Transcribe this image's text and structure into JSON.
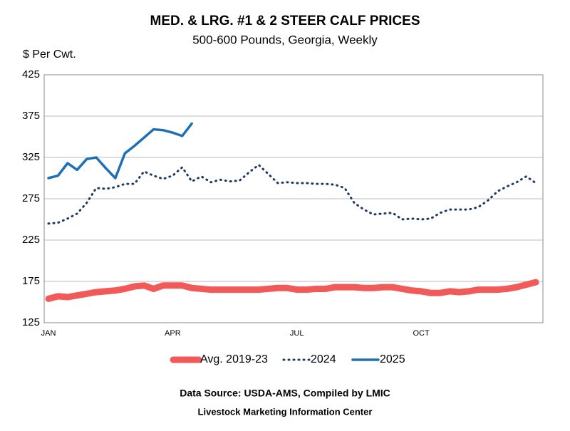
{
  "chart_data": {
    "type": "line",
    "title": "MED. & LRG. #1 & 2 STEER CALF PRICES",
    "subtitle": "500-600 Pounds, Georgia, Weekly",
    "y_label": "$ Per Cwt.",
    "source": "Data Source:  USDA-AMS, Compiled by LMIC",
    "footer": "Livestock Marketing Information Center",
    "categories": [
      "JAN",
      null,
      null,
      null,
      null,
      null,
      null,
      null,
      null,
      null,
      null,
      null,
      null,
      "APR",
      null,
      null,
      null,
      null,
      null,
      null,
      null,
      null,
      null,
      null,
      null,
      null,
      "JUL",
      null,
      null,
      null,
      null,
      null,
      null,
      null,
      null,
      null,
      null,
      null,
      null,
      "OCT",
      null,
      null,
      null,
      null,
      null,
      null,
      null,
      null,
      null,
      null,
      null,
      null
    ],
    "ylim": [
      125,
      425
    ],
    "yticks": [
      125,
      175,
      225,
      275,
      325,
      375,
      425
    ],
    "grid": true,
    "series": [
      {
        "name": "Avg. 2019-23",
        "color": "#f25a5a",
        "style": "thick",
        "values": [
          154,
          157,
          156,
          158,
          160,
          162,
          163,
          164,
          166,
          169,
          170,
          166,
          170,
          170,
          170,
          167,
          166,
          165,
          165,
          165,
          165,
          165,
          165,
          166,
          167,
          167,
          165,
          165,
          166,
          166,
          168,
          168,
          168,
          167,
          167,
          168,
          168,
          166,
          164,
          163,
          161,
          161,
          163,
          162,
          163,
          165,
          165,
          165,
          166,
          168,
          171,
          174
        ]
      },
      {
        "name": "2024",
        "color": "#1f3864",
        "style": "dotted",
        "values": [
          245,
          246,
          251,
          257,
          270,
          288,
          287,
          289,
          293,
          293,
          308,
          303,
          299,
          303,
          313,
          296,
          302,
          295,
          298,
          296,
          297,
          307,
          316,
          305,
          294,
          295,
          294,
          294,
          293,
          293,
          292,
          288,
          270,
          262,
          256,
          257,
          258,
          250,
          251,
          250,
          251,
          258,
          262,
          262,
          262,
          265,
          273,
          284,
          290,
          295,
          302,
          294
        ]
      },
      {
        "name": "2025",
        "color": "#1f6fb5",
        "style": "solid",
        "values": [
          300,
          303,
          318,
          310,
          323,
          325,
          312,
          300,
          330,
          339,
          349,
          359,
          358,
          355,
          351,
          366,
          null,
          null,
          null,
          null,
          null,
          null,
          null,
          null,
          null,
          null,
          null,
          null,
          null,
          null,
          null,
          null,
          null,
          null,
          null,
          null,
          null,
          null,
          null,
          null,
          null,
          null,
          null,
          null,
          null,
          null,
          null,
          null,
          null,
          null,
          null,
          null
        ]
      }
    ]
  }
}
